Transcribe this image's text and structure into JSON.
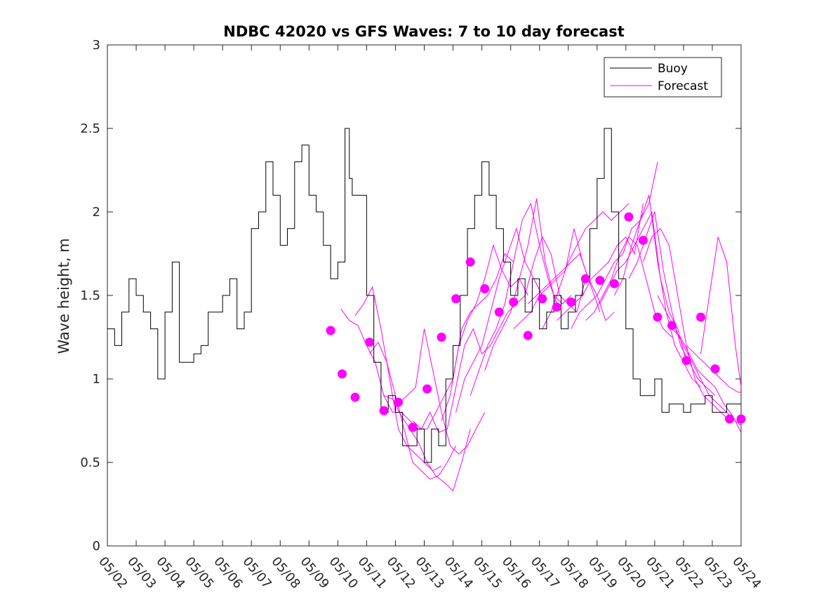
{
  "chart_data": {
    "type": "line",
    "title": "NDBC 42020 vs GFS Waves: 7 to 10 day forecast",
    "xlabel": "",
    "ylabel": "Wave height, m",
    "xlim": [
      "05/02",
      "05/24"
    ],
    "ylim": [
      0,
      3
    ],
    "xticks": [
      "05/02",
      "05/03",
      "05/04",
      "05/05",
      "05/06",
      "05/07",
      "05/08",
      "05/09",
      "05/10",
      "05/11",
      "05/12",
      "05/13",
      "05/14",
      "05/15",
      "05/16",
      "05/17",
      "05/18",
      "05/19",
      "05/20",
      "05/21",
      "05/22",
      "05/23",
      "05/24"
    ],
    "yticks": [
      0,
      0.5,
      1,
      1.5,
      2,
      2.5,
      3
    ],
    "ytick_labels": [
      "0",
      "0.5",
      "1",
      "1.5",
      "2",
      "2.5",
      "3"
    ],
    "grid": false,
    "legend": {
      "position": "top-right",
      "entries": [
        "Buoy",
        "Forecast"
      ]
    },
    "colors": {
      "buoy": "#000000",
      "forecast": "#ff00ff"
    },
    "series": [
      {
        "name": "Buoy",
        "style": "line",
        "x_days": [
          0,
          0.25,
          0.5,
          0.75,
          1.0,
          1.25,
          1.5,
          1.75,
          2.0,
          2.25,
          2.5,
          2.75,
          3.0,
          3.25,
          3.5,
          3.75,
          4.0,
          4.25,
          4.5,
          4.75,
          5.0,
          5.25,
          5.5,
          5.75,
          6.0,
          6.25,
          6.5,
          6.75,
          7.0,
          7.25,
          7.5,
          7.75,
          8.0,
          8.25,
          8.4,
          8.5,
          8.75,
          9.0,
          9.25,
          9.5,
          9.75,
          10.0,
          10.25,
          10.5,
          10.75,
          11.0,
          11.25,
          11.5,
          11.75,
          12.0,
          12.25,
          12.5,
          12.75,
          13.0,
          13.25,
          13.5,
          13.75,
          14.0,
          14.25,
          14.5,
          14.75,
          15.0,
          15.25,
          15.5,
          15.75,
          16.0,
          16.25,
          16.5,
          16.75,
          17.0,
          17.25,
          17.5,
          17.75,
          18.0,
          18.25,
          18.5,
          18.75,
          19.0,
          19.25,
          19.5,
          19.75,
          20.0,
          20.25,
          20.5,
          20.75,
          21.0,
          21.25,
          21.5,
          21.75,
          22.0
        ],
        "values": [
          1.3,
          1.2,
          1.4,
          1.6,
          1.5,
          1.4,
          1.3,
          1.0,
          1.4,
          1.7,
          1.1,
          1.1,
          1.15,
          1.2,
          1.4,
          1.4,
          1.5,
          1.6,
          1.3,
          1.4,
          1.9,
          2.0,
          2.3,
          2.1,
          1.8,
          1.9,
          2.3,
          2.4,
          2.1,
          2.0,
          1.8,
          1.6,
          1.7,
          2.5,
          2.2,
          2.1,
          2.1,
          1.5,
          1.1,
          0.8,
          0.9,
          0.8,
          0.6,
          0.6,
          0.7,
          0.5,
          0.7,
          0.6,
          1.0,
          1.2,
          1.5,
          1.9,
          2.1,
          2.3,
          2.1,
          1.9,
          1.7,
          1.5,
          1.6,
          1.4,
          1.6,
          1.3,
          1.4,
          1.5,
          1.3,
          1.4,
          1.5,
          1.6,
          1.9,
          2.2,
          2.5,
          2.0,
          1.6,
          1.3,
          1.0,
          0.9,
          0.9,
          1.0,
          0.8,
          0.85,
          0.85,
          0.8,
          0.85,
          0.85,
          0.9,
          0.8,
          0.8,
          0.85,
          0.85,
          0.85
        ]
      },
      {
        "name": "Forecast",
        "style": "dots",
        "x_days": [
          7.75,
          8.15,
          8.6,
          9.1,
          9.6,
          10.1,
          10.6,
          11.1,
          11.6,
          12.1,
          12.6,
          13.1,
          13.6,
          14.1,
          14.6,
          15.1,
          15.6,
          16.1,
          16.6,
          17.1,
          17.6,
          18.1,
          18.6,
          19.1,
          19.6,
          20.1,
          20.6,
          21.1,
          21.6,
          22.0
        ],
        "values": [
          1.29,
          1.03,
          0.89,
          1.22,
          0.81,
          0.86,
          0.71,
          0.94,
          1.25,
          1.48,
          1.7,
          1.54,
          1.4,
          1.46,
          1.26,
          1.48,
          1.43,
          1.46,
          1.6,
          1.59,
          1.57,
          1.97,
          1.83,
          1.37,
          1.32,
          1.11,
          1.37,
          1.06,
          0.76,
          0.76
        ]
      }
    ],
    "forecast_tracks": [
      {
        "x_days": [
          8.1,
          8.4,
          8.7,
          9.0,
          9.3,
          9.6,
          9.9,
          10.2,
          10.5,
          10.8,
          11.1
        ],
        "values": [
          1.42,
          1.35,
          1.32,
          1.2,
          1.1,
          0.9,
          0.8,
          0.8,
          0.75,
          0.7,
          0.7
        ]
      },
      {
        "x_days": [
          8.6,
          8.9,
          9.2,
          9.5,
          9.8,
          10.1,
          10.4,
          10.7,
          11.0,
          11.3,
          11.6
        ],
        "values": [
          1.38,
          1.45,
          1.55,
          1.3,
          1.0,
          0.7,
          0.6,
          0.55,
          0.5,
          0.45,
          0.48
        ]
      },
      {
        "x_days": [
          9.1,
          9.4,
          9.7,
          10.0,
          10.3,
          10.6,
          10.9,
          11.2,
          11.5,
          11.8,
          12.1
        ],
        "values": [
          1.15,
          1.22,
          1.1,
          0.9,
          0.7,
          0.5,
          0.45,
          0.4,
          0.42,
          0.5,
          0.6
        ]
      },
      {
        "x_days": [
          9.6,
          9.9,
          10.2,
          10.5,
          10.8,
          11.1,
          11.4,
          11.7,
          12.0,
          12.3,
          12.6
        ],
        "values": [
          0.9,
          0.88,
          0.78,
          0.7,
          0.62,
          0.5,
          0.42,
          0.38,
          0.33,
          0.5,
          0.7
        ]
      },
      {
        "x_days": [
          10.1,
          10.4,
          10.7,
          11.0,
          11.3,
          11.6,
          11.9,
          12.2,
          12.5,
          12.8,
          13.1
        ],
        "values": [
          0.85,
          0.9,
          0.95,
          1.3,
          1.05,
          0.8,
          0.6,
          0.55,
          0.6,
          0.7,
          0.8
        ]
      },
      {
        "x_days": [
          10.6,
          10.9,
          11.2,
          11.5,
          11.8,
          12.1,
          12.4,
          12.7,
          13.0,
          13.3,
          13.6
        ],
        "values": [
          0.75,
          0.7,
          0.8,
          0.68,
          0.7,
          0.95,
          1.2,
          1.3,
          1.15,
          1.2,
          1.3
        ]
      },
      {
        "x_days": [
          11.1,
          11.4,
          11.7,
          12.0,
          12.3,
          12.6,
          12.9,
          13.2,
          13.5,
          13.8,
          14.1
        ],
        "values": [
          0.7,
          0.8,
          0.9,
          1.0,
          1.3,
          1.4,
          1.45,
          1.5,
          1.6,
          1.75,
          1.7
        ]
      },
      {
        "x_days": [
          11.6,
          11.9,
          12.2,
          12.5,
          12.8,
          13.1,
          13.4,
          13.7,
          14.0,
          14.3,
          14.6
        ],
        "values": [
          0.75,
          0.9,
          1.2,
          1.35,
          1.45,
          1.6,
          1.8,
          1.65,
          1.55,
          1.6,
          1.5
        ]
      },
      {
        "x_days": [
          12.1,
          12.4,
          12.7,
          13.0,
          13.3,
          13.6,
          13.9,
          14.2,
          14.5,
          14.8,
          15.1
        ],
        "values": [
          0.8,
          1.0,
          1.1,
          1.2,
          1.4,
          1.6,
          1.75,
          1.9,
          1.7,
          1.6,
          1.5
        ]
      },
      {
        "x_days": [
          12.6,
          12.9,
          13.2,
          13.5,
          13.8,
          14.1,
          14.4,
          14.7,
          15.0,
          15.3,
          15.6
        ],
        "values": [
          0.9,
          1.05,
          1.2,
          1.3,
          1.45,
          1.7,
          1.95,
          2.05,
          1.8,
          1.6,
          1.45
        ]
      },
      {
        "x_days": [
          13.1,
          13.4,
          13.7,
          14.0,
          14.3,
          14.6,
          14.9,
          15.2,
          15.5,
          15.8,
          16.1
        ],
        "values": [
          1.05,
          1.2,
          1.3,
          1.4,
          1.6,
          1.8,
          2.08,
          1.7,
          1.5,
          1.45,
          1.5
        ]
      },
      {
        "x_days": [
          13.6,
          13.9,
          14.2,
          14.5,
          14.8,
          15.1,
          15.4,
          15.7,
          16.0,
          16.3,
          16.6
        ],
        "values": [
          1.3,
          1.4,
          1.45,
          1.5,
          1.7,
          1.85,
          1.75,
          1.5,
          1.45,
          1.4,
          1.6
        ]
      },
      {
        "x_days": [
          14.1,
          14.4,
          14.7,
          15.0,
          15.3,
          15.6,
          15.9,
          16.2,
          16.5,
          16.8,
          17.1
        ],
        "values": [
          1.3,
          1.35,
          1.4,
          1.5,
          1.55,
          1.6,
          1.65,
          1.9,
          1.7,
          1.55,
          1.4
        ]
      },
      {
        "x_days": [
          14.6,
          14.9,
          15.2,
          15.5,
          15.8,
          16.1,
          16.4,
          16.7,
          17.0,
          17.3,
          17.6
        ],
        "values": [
          1.45,
          1.5,
          1.55,
          1.6,
          1.65,
          1.7,
          1.75,
          1.6,
          1.5,
          1.35,
          1.4
        ]
      },
      {
        "x_days": [
          15.1,
          15.4,
          15.7,
          16.0,
          16.3,
          16.6,
          16.9,
          17.2,
          17.5,
          17.8,
          18.1
        ],
        "values": [
          1.3,
          1.4,
          1.55,
          1.7,
          1.8,
          1.9,
          1.95,
          2.0,
          1.95,
          2.0,
          2.05
        ]
      },
      {
        "x_days": [
          15.6,
          15.9,
          16.2,
          16.5,
          16.8,
          17.1,
          17.4,
          17.7,
          18.0,
          18.3,
          18.6
        ],
        "values": [
          1.35,
          1.4,
          1.45,
          1.5,
          1.6,
          1.65,
          1.7,
          1.8,
          1.85,
          1.75,
          2.05
        ]
      },
      {
        "x_days": [
          16.1,
          16.4,
          16.7,
          17.0,
          17.3,
          17.6,
          17.9,
          18.2,
          18.5,
          18.8,
          19.1
        ],
        "values": [
          1.3,
          1.4,
          1.45,
          1.5,
          1.6,
          1.7,
          1.75,
          1.9,
          1.95,
          2.05,
          2.3
        ]
      },
      {
        "x_days": [
          16.6,
          16.9,
          17.2,
          17.5,
          17.8,
          18.1,
          18.4,
          18.7,
          19.0,
          19.3,
          19.6
        ],
        "values": [
          1.35,
          1.4,
          1.5,
          1.6,
          1.75,
          1.85,
          1.8,
          1.6,
          1.4,
          1.3,
          1.25
        ]
      },
      {
        "x_days": [
          17.1,
          17.4,
          17.7,
          18.0,
          18.3,
          18.6,
          18.9,
          19.2,
          19.5,
          19.8,
          20.1
        ],
        "values": [
          1.45,
          1.55,
          1.65,
          1.7,
          1.8,
          1.9,
          2.0,
          1.6,
          1.4,
          1.3,
          1.1
        ]
      },
      {
        "x_days": [
          17.6,
          17.9,
          18.2,
          18.5,
          18.8,
          19.1,
          19.4,
          19.7,
          20.0,
          20.3,
          20.6
        ],
        "values": [
          1.5,
          1.6,
          1.8,
          1.95,
          2.1,
          1.7,
          1.4,
          1.2,
          1.1,
          1.0,
          0.95
        ]
      },
      {
        "x_days": [
          18.1,
          18.4,
          18.7,
          19.0,
          19.3,
          19.6,
          19.9,
          20.2,
          20.5,
          20.8,
          21.1
        ],
        "values": [
          1.6,
          1.7,
          1.85,
          2.0,
          1.65,
          1.4,
          1.2,
          1.1,
          1.0,
          0.95,
          0.9
        ]
      },
      {
        "x_days": [
          18.6,
          18.9,
          19.2,
          19.5,
          19.8,
          20.1,
          20.4,
          20.7,
          21.0,
          21.3,
          21.6
        ],
        "values": [
          1.7,
          1.85,
          1.9,
          1.8,
          1.5,
          1.2,
          1.0,
          0.9,
          0.85,
          0.8,
          0.75
        ]
      },
      {
        "x_days": [
          19.1,
          19.4,
          19.7,
          20.0,
          20.3,
          20.6,
          20.9,
          21.2,
          21.5,
          21.8,
          22.0
        ],
        "values": [
          1.5,
          1.4,
          1.3,
          1.2,
          1.1,
          1.0,
          0.9,
          0.85,
          0.8,
          0.75,
          0.72
        ]
      },
      {
        "x_days": [
          19.6,
          19.9,
          20.2,
          20.5,
          20.8,
          21.1,
          21.4,
          21.7,
          22.0
        ],
        "values": [
          1.3,
          1.25,
          1.15,
          1.05,
          1.0,
          0.95,
          0.85,
          0.78,
          0.68
        ]
      },
      {
        "x_days": [
          20.1,
          20.4,
          20.7,
          21.0,
          21.3,
          21.6,
          21.9,
          22.0
        ],
        "values": [
          1.2,
          1.15,
          1.1,
          1.05,
          1.0,
          0.95,
          0.92,
          0.92
        ]
      },
      {
        "x_days": [
          20.6,
          20.9,
          21.2,
          21.5,
          21.8,
          22.0
        ],
        "values": [
          1.15,
          1.5,
          1.85,
          1.7,
          1.2,
          0.95
        ]
      }
    ]
  }
}
